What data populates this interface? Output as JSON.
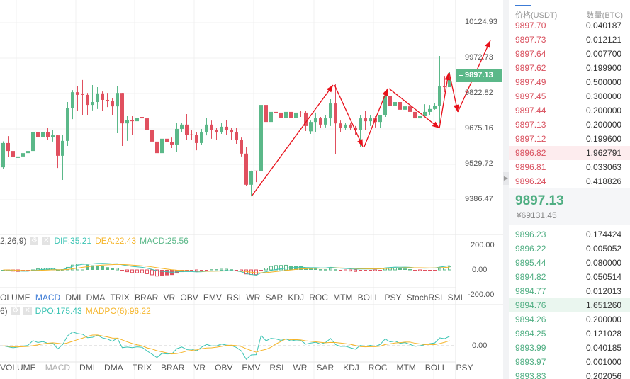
{
  "price_axis": {
    "ticks": [
      "10124.93",
      "9972.73",
      "9822.82",
      "9675.16",
      "9529.72",
      "9386.47"
    ],
    "last_price_tag": "9897.13"
  },
  "macd_panel": {
    "title_fragment": "2,26,9)",
    "dif_label": "DIF:35.21",
    "dea_label": "DEA:22.43",
    "macd_label": "MACD:25.56",
    "axis_ticks": [
      "200.00",
      "0.00",
      "-200.00"
    ],
    "tabs": [
      "OLUME",
      "MACD",
      "DMI",
      "DMA",
      "TRIX",
      "BRAR",
      "VR",
      "OBV",
      "EMV",
      "RSI",
      "WR",
      "SAR",
      "KDJ",
      "ROC",
      "MTM",
      "BOLL",
      "PSY",
      "StochRSI",
      "SMI"
    ],
    "active_tab": "MACD"
  },
  "dpo_panel": {
    "title_fragment": "6)",
    "dpo_label": "DPO:175.43",
    "madpo_label": "MADPO(6):96.22",
    "axis_ticks": [
      "0.00"
    ],
    "tabs": [
      "VOLUME",
      "MACD",
      "DMI",
      "DMA",
      "TRIX",
      "BRAR",
      "VR",
      "OBV",
      "EMV",
      "RSI",
      "WR",
      "SAR",
      "KDJ",
      "ROC",
      "MTM",
      "BOLL",
      "PSY"
    ],
    "muted_tab": "MACD"
  },
  "colors": {
    "up": "#5bb889",
    "down": "#e0505f",
    "dif": "#3cc4b4",
    "dea": "#f5b52a",
    "annotation": "#e8101a",
    "active_tab": "#3c7bd6"
  },
  "orderbook": {
    "price_header": "价格(USDT)",
    "qty_header": "数量(BTC)",
    "asks": [
      {
        "price": "9897.70",
        "qty": "0.040187"
      },
      {
        "price": "9897.73",
        "qty": "0.012121"
      },
      {
        "price": "9897.64",
        "qty": "0.007700"
      },
      {
        "price": "9897.62",
        "qty": "0.199900"
      },
      {
        "price": "9897.49",
        "qty": "0.500000"
      },
      {
        "price": "9897.45",
        "qty": "0.300000"
      },
      {
        "price": "9897.44",
        "qty": "0.200000"
      },
      {
        "price": "9897.13",
        "qty": "0.200000"
      },
      {
        "price": "9897.12",
        "qty": "0.199600"
      },
      {
        "price": "9896.82",
        "qty": "1.962791",
        "highlight": true
      },
      {
        "price": "9896.81",
        "qty": "0.033063"
      },
      {
        "price": "9896.24",
        "qty": "0.418826"
      }
    ],
    "last_price": "9897.13",
    "last_price_cny": "¥69131.45",
    "bids": [
      {
        "price": "9896.23",
        "qty": "0.174424"
      },
      {
        "price": "9896.22",
        "qty": "0.005052"
      },
      {
        "price": "9895.44",
        "qty": "0.080000"
      },
      {
        "price": "9894.82",
        "qty": "0.050514"
      },
      {
        "price": "9894.77",
        "qty": "0.012013"
      },
      {
        "price": "9894.76",
        "qty": "1.651260",
        "highlight": true
      },
      {
        "price": "9894.26",
        "qty": "0.200000"
      },
      {
        "price": "9894.25",
        "qty": "0.121028"
      },
      {
        "price": "9893.99",
        "qty": "0.040185"
      },
      {
        "price": "9893.97",
        "qty": "0.001000"
      },
      {
        "price": "9893.83",
        "qty": "0.202056"
      }
    ]
  },
  "chart_data": {
    "type": "candlestick",
    "ylim": [
      9386.47,
      10124.93
    ],
    "grid": true,
    "ohlc": [
      [
        9522,
        9623,
        9630,
        9515
      ],
      [
        9623,
        9590,
        9652,
        9564
      ],
      [
        9590,
        9564,
        9595,
        9502
      ],
      [
        9561,
        9567,
        9593,
        9549
      ],
      [
        9567,
        9581,
        9629,
        9522
      ],
      [
        9581,
        9590,
        9600,
        9575
      ],
      [
        9590,
        9670,
        9694,
        9564
      ],
      [
        9670,
        9649,
        9676,
        9605
      ],
      [
        9649,
        9670,
        9694,
        9638
      ],
      [
        9670,
        9649,
        9685,
        9635
      ],
      [
        9649,
        9655,
        9676,
        9629
      ],
      [
        9655,
        9570,
        9658,
        9519
      ],
      [
        9570,
        9632,
        9658,
        9469
      ],
      [
        9632,
        9768,
        9794,
        9611
      ],
      [
        9768,
        9835,
        9844,
        9723
      ],
      [
        9835,
        9824,
        9859,
        9756
      ],
      [
        9827,
        9824,
        9886,
        9741
      ],
      [
        9824,
        9782,
        9832,
        9741
      ],
      [
        9782,
        9794,
        9865,
        9759
      ],
      [
        9794,
        9830,
        9856,
        9765
      ],
      [
        9830,
        9803,
        9838,
        9756
      ],
      [
        9803,
        9797,
        9832,
        9773
      ],
      [
        9797,
        9776,
        9812,
        9741
      ],
      [
        9776,
        9832,
        9859,
        9664
      ],
      [
        9832,
        9705,
        9832,
        9611
      ],
      [
        9705,
        9720,
        9735,
        9632
      ],
      [
        9720,
        9714,
        9735,
        9658
      ],
      [
        9714,
        9729,
        9756,
        9700
      ],
      [
        9732,
        9726,
        9759,
        9708
      ],
      [
        9726,
        9676,
        9741,
        9661
      ],
      [
        9676,
        9629,
        9694,
        9629
      ],
      [
        9629,
        9581,
        9629,
        9543
      ],
      [
        9581,
        9641,
        9652,
        9558
      ],
      [
        9641,
        9626,
        9658,
        9587
      ],
      [
        9626,
        9617,
        9646,
        9602
      ],
      [
        9617,
        9682,
        9708,
        9587
      ],
      [
        9682,
        9700,
        9708,
        9667
      ],
      [
        9700,
        9658,
        9744,
        9635
      ],
      [
        9659,
        9656,
        9676,
        9635
      ],
      [
        9658,
        9623,
        9670,
        9593
      ],
      [
        9623,
        9667,
        9682,
        9617
      ],
      [
        9667,
        9700,
        9729,
        9655
      ],
      [
        9700,
        9676,
        9717,
        9641
      ],
      [
        9676,
        9667,
        9685,
        9635
      ],
      [
        9667,
        9691,
        9708,
        9661
      ],
      [
        9691,
        9676,
        9720,
        9658
      ],
      [
        9676,
        9667,
        9685,
        9635
      ],
      [
        9667,
        9635,
        9685,
        9620
      ],
      [
        9635,
        9579,
        9646,
        9567
      ],
      [
        9579,
        9449,
        9608,
        9443
      ],
      [
        9449,
        9505,
        9508,
        9401
      ],
      [
        9508,
        9505,
        9508,
        9460
      ],
      [
        9505,
        9782,
        9818,
        9499
      ],
      [
        9782,
        9711,
        9812,
        9691
      ],
      [
        9711,
        9753,
        9791,
        9694
      ],
      [
        9753,
        9747,
        9782,
        9717
      ],
      [
        9750,
        9729,
        9762,
        9711
      ],
      [
        9729,
        9753,
        9762,
        9717
      ],
      [
        9753,
        9729,
        9762,
        9717
      ],
      [
        9729,
        9750,
        9806,
        9658
      ],
      [
        9750,
        9747,
        9756,
        9732
      ],
      [
        9750,
        9694,
        9756,
        9673
      ],
      [
        9672,
        9711,
        9717,
        9661
      ],
      [
        9711,
        9726,
        9750,
        9667
      ],
      [
        9726,
        9700,
        9732,
        9685
      ],
      [
        9700,
        9726,
        9741,
        9688
      ],
      [
        9726,
        9788,
        9806,
        9694
      ],
      [
        9788,
        9705,
        9871,
        9576
      ],
      [
        9705,
        9685,
        9717,
        9670
      ],
      [
        9685,
        9700,
        9708,
        9676
      ],
      [
        9700,
        9688,
        9705,
        9676
      ],
      [
        9688,
        9676,
        9694,
        9658
      ],
      [
        9676,
        9726,
        9738,
        9608
      ],
      [
        9726,
        9714,
        9756,
        9679
      ],
      [
        9714,
        9726,
        9738,
        9694
      ],
      [
        9726,
        9711,
        9735,
        9688
      ],
      [
        9711,
        9738,
        9741,
        9685
      ],
      [
        9738,
        9818,
        9827,
        9732
      ],
      [
        9818,
        9779,
        9832,
        9700
      ],
      [
        9779,
        9794,
        9815,
        9765
      ],
      [
        9794,
        9762,
        9788,
        9750
      ],
      [
        9762,
        9776,
        9797,
        9738
      ],
      [
        9776,
        9753,
        9785,
        9729
      ],
      [
        9753,
        9726,
        9759,
        9711
      ],
      [
        9726,
        9735,
        9753,
        9726
      ],
      [
        9735,
        9753,
        9785,
        9738
      ],
      [
        9753,
        9765,
        9782,
        9741
      ],
      [
        9765,
        9779,
        9791,
        9762
      ],
      [
        9779,
        9859,
        9986,
        9705
      ],
      [
        9859,
        9856,
        9903,
        9835
      ],
      [
        9856,
        9900,
        9918,
        9856
      ]
    ]
  }
}
